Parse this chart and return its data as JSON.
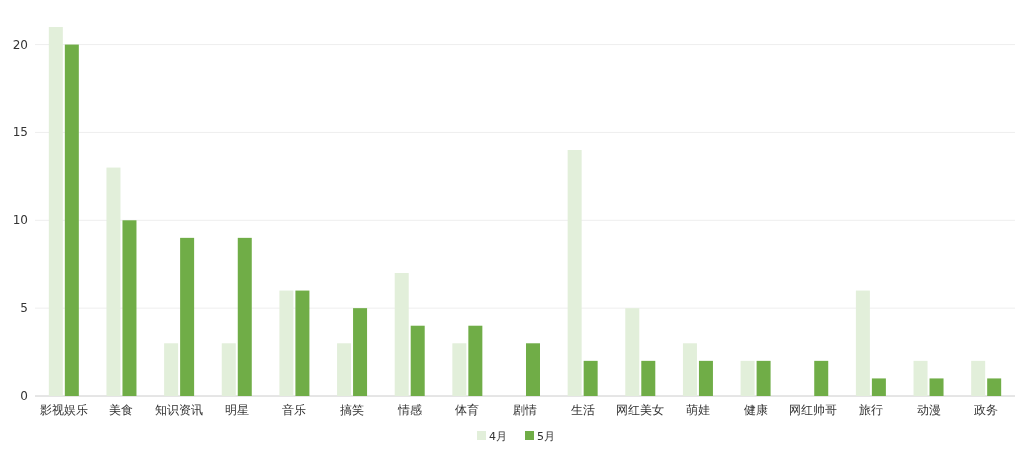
{
  "chart_data": {
    "type": "bar",
    "categories": [
      "影视娱乐",
      "美食",
      "知识资讯",
      "明星",
      "音乐",
      "搞笑",
      "情感",
      "体育",
      "剧情",
      "生活",
      "网红美女",
      "萌娃",
      "健康",
      "网红帅哥",
      "旅行",
      "动漫",
      "政务"
    ],
    "series": [
      {
        "name": "4月",
        "color": "#e2efda",
        "values": [
          21,
          13,
          3,
          3,
          6,
          3,
          7,
          3,
          0,
          14,
          5,
          3,
          2,
          0,
          6,
          2,
          2
        ]
      },
      {
        "name": "5月",
        "color": "#70ad47",
        "values": [
          20,
          10,
          9,
          9,
          6,
          5,
          4,
          4,
          3,
          2,
          2,
          2,
          2,
          2,
          1,
          1,
          1
        ]
      }
    ],
    "ylim": [
      0,
      21
    ],
    "yticks": [
      0,
      5,
      10,
      15,
      20
    ],
    "grid": "y",
    "legend": "bottom"
  }
}
